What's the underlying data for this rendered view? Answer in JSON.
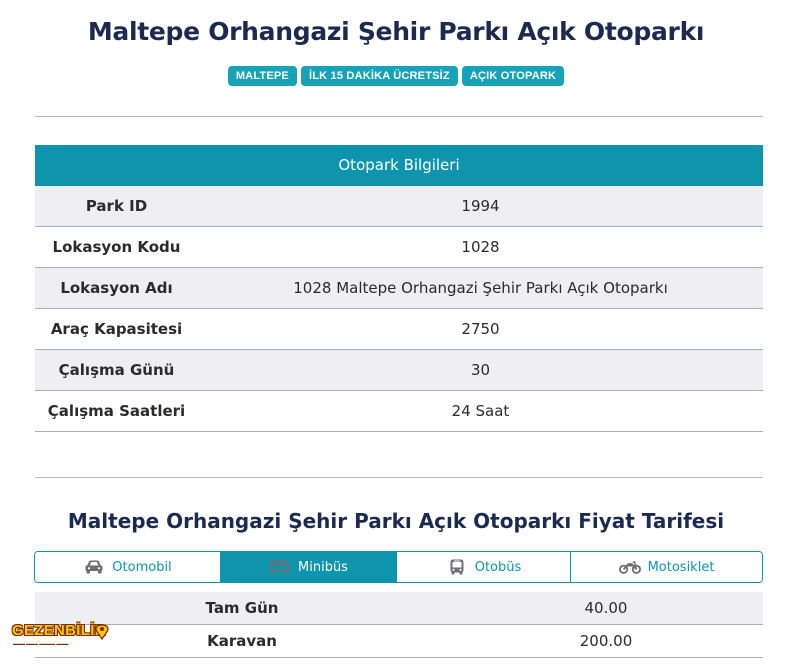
{
  "header": {
    "title": "Maltepe Orhangazi Şehir Parkı Açık Otoparkı",
    "badges": [
      "MALTEPE",
      "İLK 15 DAKİKA ÜCRETSİZ",
      "AÇIK OTOPARK"
    ]
  },
  "info_table": {
    "title": "Otopark Bilgileri",
    "rows": [
      {
        "label": "Park ID",
        "value": "1994"
      },
      {
        "label": "Lokasyon Kodu",
        "value": "1028"
      },
      {
        "label": "Lokasyon Adı",
        "value": "1028 Maltepe Orhangazi Şehir Parkı Açık Otoparkı"
      },
      {
        "label": "Araç Kapasitesi",
        "value": "2750"
      },
      {
        "label": "Çalışma Günü",
        "value": "30"
      },
      {
        "label": "Çalışma Saatleri",
        "value": "24 Saat"
      }
    ]
  },
  "tariff": {
    "title": "Maltepe Orhangazi Şehir Parkı Açık Otoparkı Fiyat Tarifesi",
    "tabs": [
      {
        "label": "Otomobil",
        "icon": "car-icon"
      },
      {
        "label": "Minibüs",
        "icon": "minibus-icon",
        "active": true
      },
      {
        "label": "Otobüs",
        "icon": "bus-icon"
      },
      {
        "label": "Motosiklet",
        "icon": "motorcycle-icon"
      }
    ],
    "rows": [
      {
        "label": "Tam Gün",
        "value": "40.00"
      },
      {
        "label": "Karavan",
        "value": "200.00"
      }
    ]
  },
  "watermark": {
    "text": "GEZENBİLİR"
  },
  "colors": {
    "accent": "#0e95ad",
    "badge": "#17a2b8",
    "stripe": "#eeeef3",
    "title": "#1b2a4e"
  }
}
